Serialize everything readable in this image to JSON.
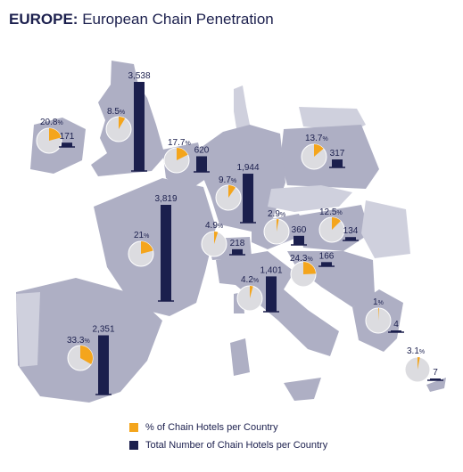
{
  "title": {
    "bold": "EUROPE:",
    "rest": "European Chain Penetration"
  },
  "colors": {
    "pie_fill": "#f4a51c",
    "pie_base": "#dcdce0",
    "bar": "#1b1f4d",
    "land": "#aeafc4",
    "land_light": "#cfd0dd",
    "border": "#ffffff"
  },
  "legend": [
    {
      "label": "% of Chain Hotels per Country",
      "color": "#f4a51c"
    },
    {
      "label": "Total Number of Chain Hotels per Country",
      "color": "#1b1f4d"
    }
  ],
  "chart_data": {
    "type": "map-pie-bar",
    "title": "European Chain Penetration",
    "pct_unit": "%",
    "series": [
      {
        "name": "% of Chain Hotels per Country",
        "unit": "%"
      },
      {
        "name": "Total Number of Chain Hotels per Country"
      }
    ],
    "points": [
      {
        "pct": 20.8,
        "pct_label": "20.8",
        "total": 171,
        "total_label": "171"
      },
      {
        "pct": 8.5,
        "pct_label": "8.5",
        "total": 3538,
        "total_label": "3,538"
      },
      {
        "pct": 17.7,
        "pct_label": "17.7",
        "total": 620,
        "total_label": "620"
      },
      {
        "pct": 9.7,
        "pct_label": "9.7",
        "total": 1944,
        "total_label": "1,944"
      },
      {
        "pct": 13.7,
        "pct_label": "13.7",
        "total": 317,
        "total_label": "317"
      },
      {
        "pct": 21,
        "pct_label": "21",
        "total": 3819,
        "total_label": "3,819"
      },
      {
        "pct": 4.9,
        "pct_label": "4.9",
        "total": 218,
        "total_label": "218"
      },
      {
        "pct": 2.9,
        "pct_label": "2.9",
        "total": 360,
        "total_label": "360"
      },
      {
        "pct": 12.5,
        "pct_label": "12.5",
        "total": 134,
        "total_label": "134"
      },
      {
        "pct": 24.3,
        "pct_label": "24.3",
        "total": 166,
        "total_label": "166"
      },
      {
        "pct": 4.2,
        "pct_label": "4.2",
        "total": 1401,
        "total_label": "1,401"
      },
      {
        "pct": 33.3,
        "pct_label": "33.3",
        "total": 2351,
        "total_label": "2,351"
      },
      {
        "pct": 1,
        "pct_label": "1",
        "total": 4,
        "total_label": "4"
      },
      {
        "pct": 3.1,
        "pct_label": "3.1",
        "total": 7,
        "total_label": "7"
      }
    ]
  }
}
